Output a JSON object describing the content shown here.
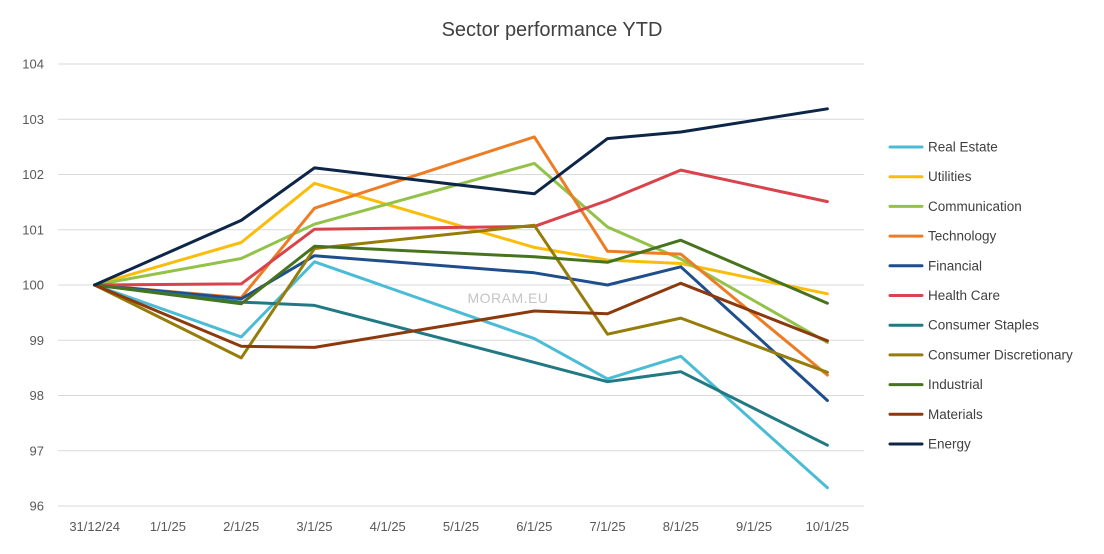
{
  "watermark": "MORAM.EU",
  "chart_data": {
    "type": "line",
    "title": "Sector performance YTD",
    "xlabel": "",
    "ylabel": "",
    "categories": [
      "31/12/24",
      "1/1/25",
      "2/1/25",
      "3/1/25",
      "4/1/25",
      "5/1/25",
      "6/1/25",
      "7/1/25",
      "8/1/25",
      "9/1/25",
      "10/1/25"
    ],
    "ylim": [
      96,
      104
    ],
    "yticks": [
      "96",
      "97",
      "98",
      "99",
      "100",
      "101",
      "102",
      "103",
      "104"
    ],
    "grid": true,
    "legend_position": "right",
    "series": [
      {
        "name": "Real Estate",
        "color": "#4bbcd6",
        "values": [
          100,
          null,
          99.06,
          100.42,
          null,
          null,
          99.03,
          98.3,
          98.71,
          null,
          96.33
        ]
      },
      {
        "name": "Utilities",
        "color": "#fbbd0b",
        "values": [
          100,
          null,
          100.77,
          101.84,
          null,
          null,
          100.68,
          100.45,
          100.39,
          null,
          99.84
        ]
      },
      {
        "name": "Communication",
        "color": "#92c248",
        "values": [
          100,
          null,
          100.48,
          101.1,
          null,
          null,
          102.2,
          101.05,
          100.47,
          null,
          98.96
        ]
      },
      {
        "name": "Technology",
        "color": "#ed7d24",
        "values": [
          100,
          null,
          99.77,
          101.39,
          null,
          null,
          102.68,
          100.61,
          100.56,
          null,
          98.37
        ]
      },
      {
        "name": "Financial",
        "color": "#1f4e8c",
        "values": [
          100,
          null,
          99.75,
          100.53,
          null,
          null,
          100.22,
          100.0,
          100.33,
          null,
          97.91
        ]
      },
      {
        "name": "Health Care",
        "color": "#d9434c",
        "values": [
          100,
          null,
          100.02,
          101.01,
          null,
          null,
          101.06,
          101.53,
          102.08,
          null,
          101.51
        ]
      },
      {
        "name": "Consumer Staples",
        "color": "#217984",
        "values": [
          100,
          null,
          99.69,
          99.63,
          null,
          null,
          98.6,
          98.25,
          98.43,
          null,
          97.1
        ]
      },
      {
        "name": "Consumer Discretionary",
        "color": "#967c0a",
        "values": [
          100,
          null,
          98.68,
          100.66,
          null,
          null,
          101.08,
          99.11,
          99.4,
          null,
          98.42
        ]
      },
      {
        "name": "Industrial",
        "color": "#47731f",
        "values": [
          100,
          null,
          99.66,
          100.7,
          null,
          null,
          100.51,
          100.41,
          100.81,
          null,
          99.67
        ]
      },
      {
        "name": "Materials",
        "color": "#8c3a0d",
        "values": [
          100,
          null,
          98.89,
          98.87,
          null,
          null,
          99.53,
          99.48,
          100.03,
          null,
          98.99
        ]
      },
      {
        "name": "Energy",
        "color": "#0d2648",
        "values": [
          100,
          null,
          101.17,
          102.12,
          null,
          null,
          101.65,
          102.65,
          102.77,
          null,
          103.19
        ]
      }
    ]
  }
}
